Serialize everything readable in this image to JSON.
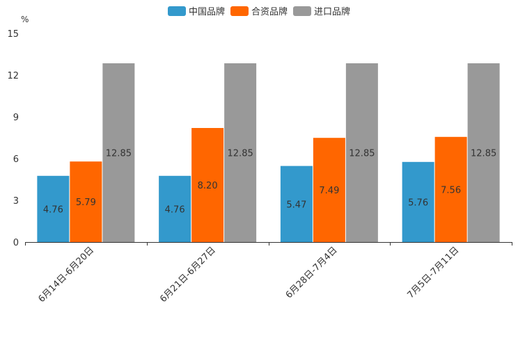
{
  "chart_data": {
    "type": "bar",
    "title": "",
    "xlabel": "",
    "ylabel": "%",
    "ylim": [
      0,
      15
    ],
    "yticks": [
      0,
      3,
      6,
      9,
      12,
      15
    ],
    "grid": false,
    "legend_position": "top-center",
    "categories": [
      "6月14日-6月20日",
      "6月21日-6月27日",
      "6月28日-7月4日",
      "7月5日-7月11日"
    ],
    "series": [
      {
        "name": "中国品牌",
        "color": "#3399cc",
        "values": [
          4.76,
          4.76,
          5.47,
          5.76
        ]
      },
      {
        "name": "合资品牌",
        "color": "#ff6600",
        "values": [
          5.79,
          8.2,
          7.49,
          7.56
        ]
      },
      {
        "name": "进口品牌",
        "color": "#999999",
        "values": [
          12.85,
          12.85,
          12.85,
          12.85
        ]
      }
    ]
  }
}
